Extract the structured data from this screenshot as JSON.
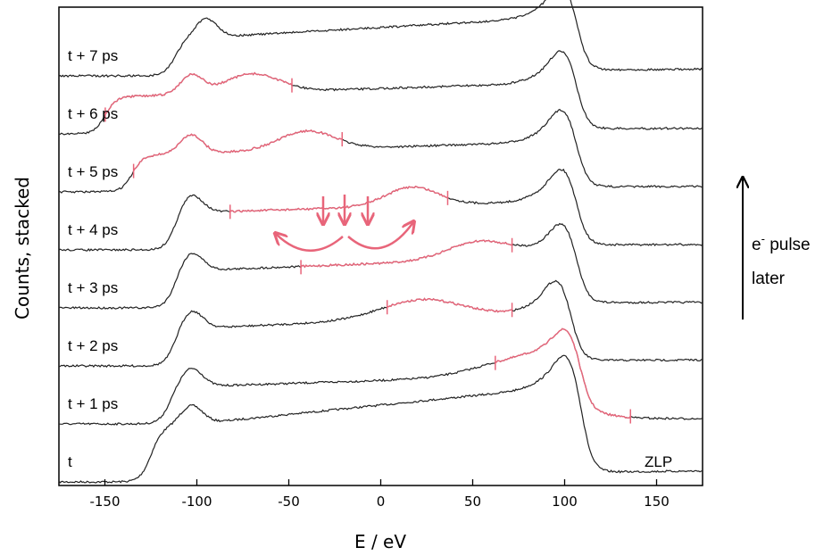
{
  "chart_data": {
    "type": "line",
    "xlabel": "E / eV",
    "ylabel": "Counts, stacked",
    "xlim": [
      -175,
      175
    ],
    "xticks": [
      -150,
      -100,
      -50,
      0,
      50,
      100,
      150
    ],
    "xtick_labels": [
      "-150",
      "-100",
      "-50",
      "0",
      "50",
      "100",
      "150"
    ],
    "grid": false,
    "line_color": "#222222",
    "highlight_color": "#e8657a",
    "zlp_label": "ZLP",
    "side_annotation": {
      "line1": "e",
      "superscript": "-",
      "line1_rest": " pulse",
      "line2": "later"
    },
    "series": [
      {
        "name": "t",
        "onset": -125,
        "hump": -103,
        "zlp": 102,
        "rise": 0.8,
        "highlight": null
      },
      {
        "name": "t + 1 ps",
        "onset": -115,
        "hump": -103,
        "zlp": 102,
        "rise": 0.25,
        "highlight": {
          "start": 62,
          "end": 136,
          "center": 80,
          "width": 25
        }
      },
      {
        "name": "t + 2 ps",
        "onset": -112,
        "hump": -103,
        "zlp": 97,
        "rise": 0.35,
        "highlight": {
          "start": 3,
          "end": 72,
          "center": 22,
          "width": 22
        }
      },
      {
        "name": "t + 3 ps",
        "onset": -112,
        "hump": -103,
        "zlp": 100,
        "rise": 0.3,
        "highlight": {
          "start": -44,
          "end": 72,
          "center": 55,
          "width": 18
        }
      },
      {
        "name": "t + 4 ps",
        "onset": -112,
        "hump": -103,
        "zlp": 100,
        "rise": 0.25,
        "highlight": {
          "start": -82,
          "end": 37,
          "center": 17,
          "width": 14
        }
      },
      {
        "name": "t + 5 ps",
        "onset": -135,
        "hump": -103,
        "zlp": 100,
        "rise": 0.25,
        "highlight": {
          "start": -135,
          "end": -21,
          "center": -40,
          "width": 15
        }
      },
      {
        "name": "t + 6 ps",
        "onset": -150,
        "hump": -103,
        "zlp": 100,
        "rise": 0.25,
        "highlight": {
          "start": -150,
          "end": -48,
          "center": -70,
          "width": 15
        }
      },
      {
        "name": "t + 7 ps",
        "onset": -112,
        "hump": -95,
        "zlp": 100,
        "rise": 0.45,
        "highlight": null
      }
    ]
  }
}
